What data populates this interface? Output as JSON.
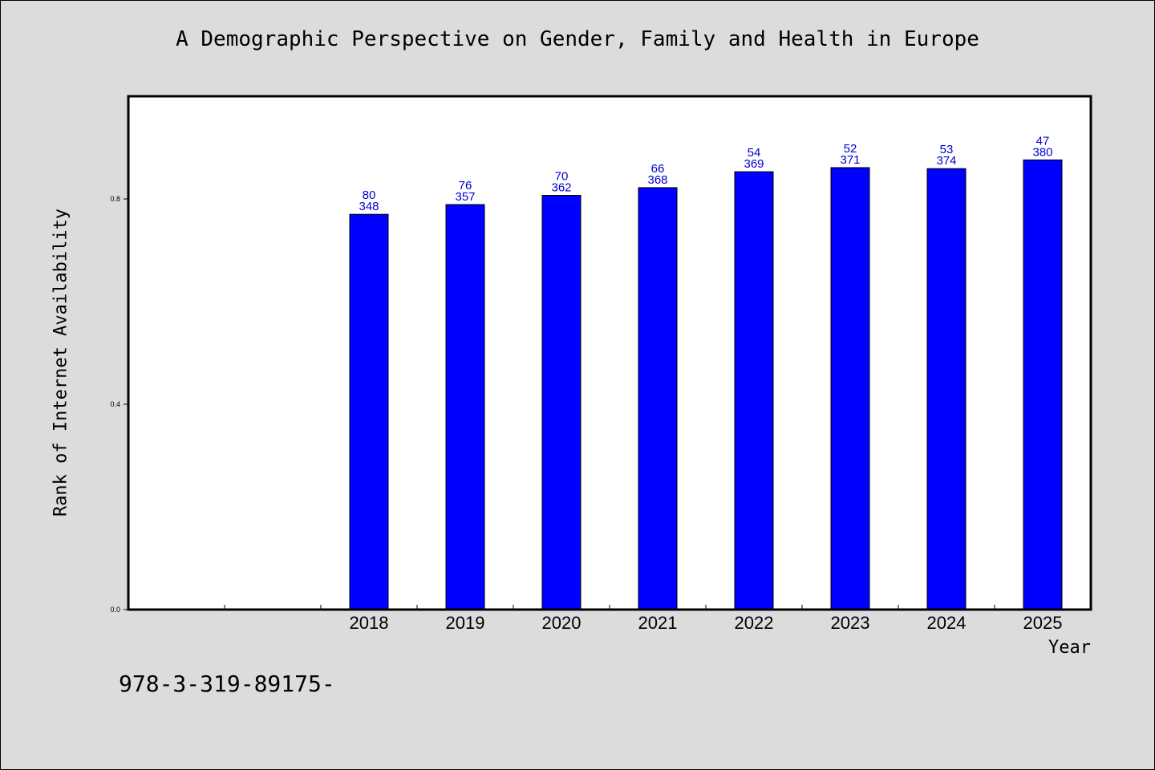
{
  "title": "A Demographic Perspective on Gender, Family and Health in Europe",
  "footnote": "978-3-319-89175-",
  "colors": {
    "bar": "#0000ff",
    "data_label": "#0000cc",
    "background": "#dcdcdc",
    "plot_background": "#ffffff"
  },
  "chart_data": {
    "type": "bar",
    "xlabel": "Year",
    "ylabel": "Rank of Internet Availability",
    "ylim": [
      0,
      1.0
    ],
    "yticks": [
      "0.0",
      "0.4",
      "0.8"
    ],
    "slots": 10,
    "categories": [
      "2018",
      "2019",
      "2020",
      "2021",
      "2022",
      "2023",
      "2024",
      "2025"
    ],
    "values": [
      0.77,
      0.789,
      0.807,
      0.822,
      0.853,
      0.861,
      0.859,
      0.876
    ],
    "labels_top": [
      "80",
      "76",
      "70",
      "66",
      "54",
      "52",
      "53",
      "47"
    ],
    "labels_bottom": [
      "348",
      "357",
      "362",
      "368",
      "369",
      "371",
      "374",
      "380"
    ],
    "grid": false,
    "legend": "none"
  }
}
